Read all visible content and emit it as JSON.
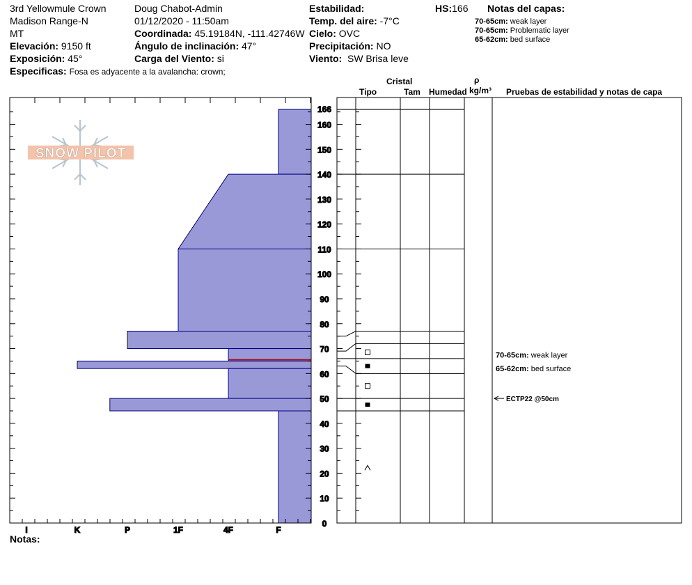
{
  "header": {
    "site": "3rd Yellowmule Crown",
    "range": "Madison Range-N",
    "state": "MT",
    "elevation_label": "Elevación:",
    "elevation": "9150 ft",
    "aspect_label": "Exposición:",
    "aspect": "45°",
    "specifics_label": "Especificas:",
    "specifics": "Fosa es adyacente a la avalancha: crown;",
    "observer": "Doug Chabot-Admin",
    "datetime": "01/12/2020 - 11:50am",
    "coord_label": "Coordinada:",
    "coord": "45.19184N, -111.42746W",
    "slope_label": "Ángulo de inclinación:",
    "slope": "47°",
    "wind_load_label": "Carga del Viento:",
    "wind_load": "si",
    "stability_label": "Estabilidad:",
    "air_temp_label": "Temp. del aire:",
    "air_temp": "-7°C",
    "sky_label": "Cielo:",
    "sky": "OVC",
    "precip_label": "Precipitación:",
    "precip": "NO",
    "wind_label": "Viento:",
    "wind": "SW Brisa leve",
    "hs_label": "HS:",
    "hs": "166",
    "layer_notes_title": "Notas del capas:",
    "layer_notes": [
      {
        "range": "70-65cm:",
        "text": "weak layer"
      },
      {
        "range": "70-65cm:",
        "text": "Problematic layer"
      },
      {
        "range": "65-62cm:",
        "text": "bed surface"
      }
    ]
  },
  "columns": {
    "cristal": "Cristal",
    "tipo": "Tipo",
    "tam": "Tam",
    "humedad": "Humedad",
    "rho": "ρ",
    "density_unit": "kg/m³",
    "tests": "Pruebas de estabilidad y notas de capa"
  },
  "logo_text": "SNOW PILOT",
  "notes_label": "Notas:",
  "chart_data": {
    "type": "bar",
    "title": "",
    "y_range": [
      0,
      166
    ],
    "y_ticks": [
      0,
      10,
      20,
      30,
      40,
      50,
      60,
      70,
      80,
      90,
      100,
      110,
      120,
      130,
      140,
      150,
      160,
      166
    ],
    "hardness_scale": [
      "I",
      "K",
      "P",
      "1F",
      "4F",
      "F"
    ],
    "hardness_profile": [
      {
        "top": 166,
        "bottom": 140,
        "hardness": 1
      },
      {
        "top": 140,
        "bottom": 110,
        "hardness_top": 2,
        "hardness_bottom": 3,
        "tapered": true
      },
      {
        "top": 110,
        "bottom": 77,
        "hardness": 3
      },
      {
        "top": 77,
        "bottom": 70,
        "hardness": 4
      },
      {
        "top": 70,
        "bottom": 65,
        "hardness": 2
      },
      {
        "top": 65,
        "bottom": 62,
        "hardness": 5
      },
      {
        "top": 62,
        "bottom": 50,
        "hardness": 2
      },
      {
        "top": 50,
        "bottom": 45,
        "hardness": 4.35
      },
      {
        "top": 45,
        "bottom": 0,
        "hardness": 1
      }
    ],
    "problem_layer_depth": 65.5,
    "layer_boundaries": [
      166,
      140,
      110,
      77,
      72,
      66,
      60,
      50,
      45
    ],
    "grain_symbols": [
      {
        "depth": 68.5,
        "symbol": "square"
      },
      {
        "depth": 63,
        "symbol": "filled-square"
      },
      {
        "depth": 55,
        "symbol": "square"
      },
      {
        "depth": 47.5,
        "symbol": "filled-square"
      },
      {
        "depth": 22,
        "symbol": "caret"
      }
    ],
    "layer_annotations": [
      {
        "depth": 67.5,
        "range": "70-65cm:",
        "text": "weak layer"
      },
      {
        "depth": 62,
        "range": "65-62cm:",
        "text": "bed surface"
      }
    ],
    "tests": [
      {
        "depth": 50,
        "label": "ECTP22 @50cm"
      }
    ]
  }
}
